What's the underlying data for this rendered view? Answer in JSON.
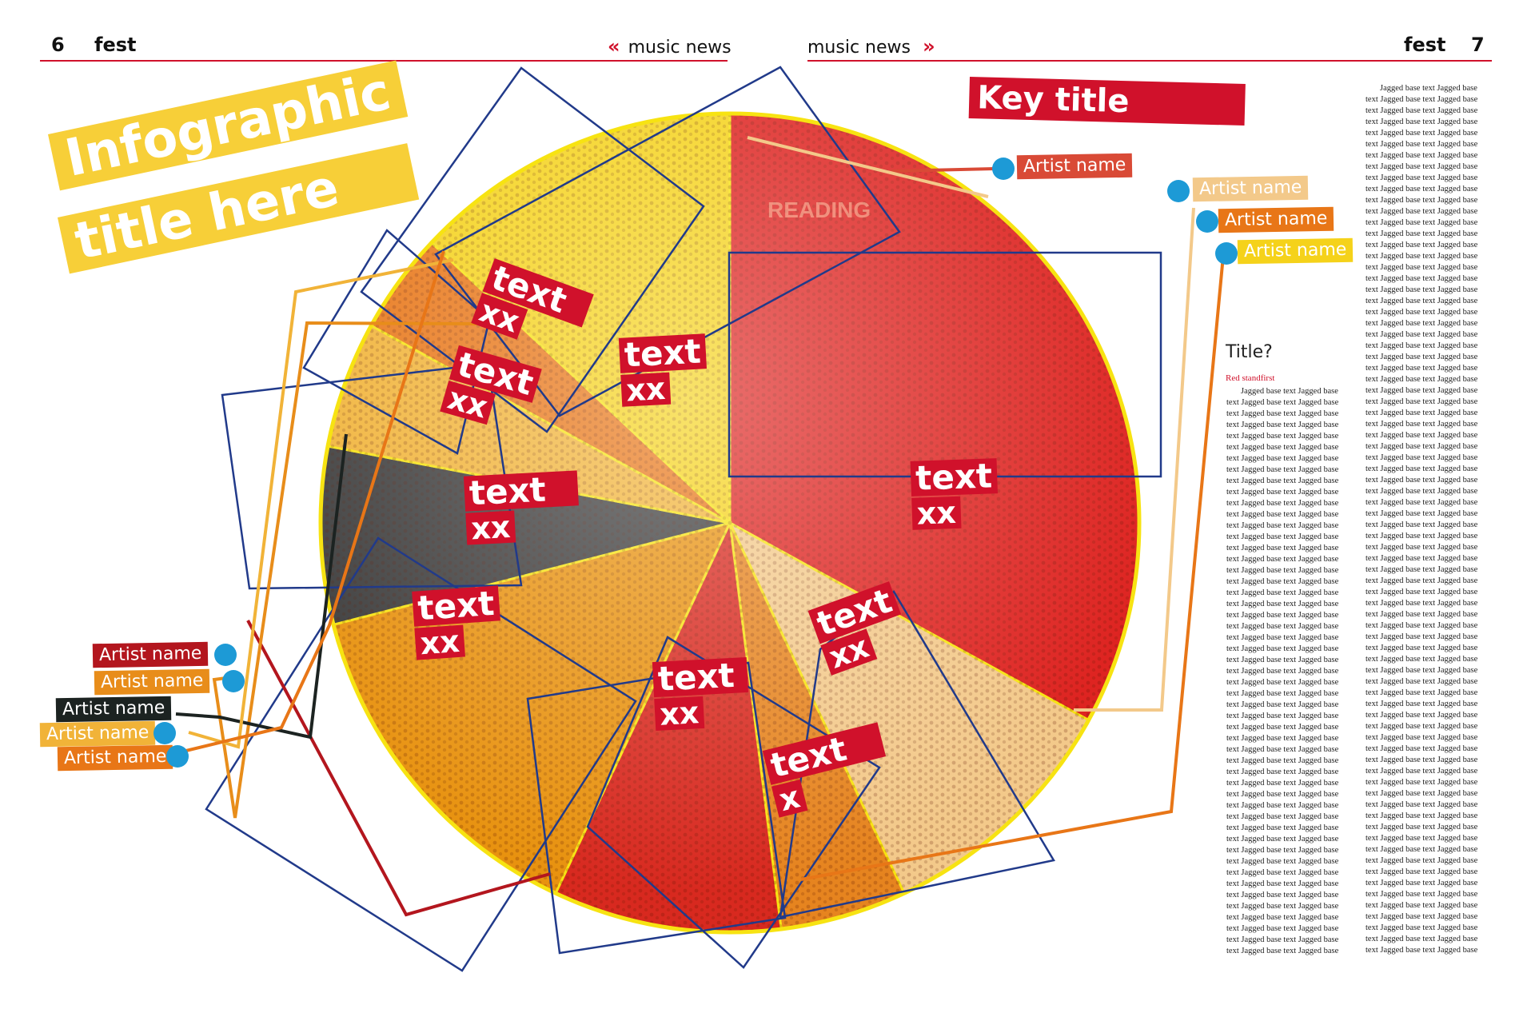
{
  "header": {
    "left_page_number": "6",
    "left_magazine": "fest",
    "left_section": "music news",
    "right_section": "music news",
    "right_magazine": "fest",
    "right_page_number": "7",
    "chevron_left": "«",
    "chevron_right": "»"
  },
  "infographic": {
    "title_line1": "Infographic",
    "title_line2": "title here",
    "key_title": "Key title",
    "photo_sign": "READING"
  },
  "chart_data": {
    "type": "pie",
    "title": "Infographic title here",
    "slices": [
      {
        "label_line1": "text",
        "label_line2": "xx",
        "value": 33.0,
        "color": "#de2421"
      },
      {
        "label_line1": "text",
        "label_line2": "xx",
        "value": 10.0,
        "color": "#f3c98a"
      },
      {
        "label_line1": "text",
        "label_line2": "x",
        "value": 5.0,
        "color": "#e6841f"
      },
      {
        "label_line1": "text",
        "label_line2": "xx",
        "value": 9.0,
        "color": "#d8291f"
      },
      {
        "label_line1": "text",
        "label_line2": "xx",
        "value": 14.0,
        "color": "#e8920f"
      },
      {
        "label_line1": "text",
        "label_line2": "xx",
        "value": 7.0,
        "color": "#3c3c3c"
      },
      {
        "label_line1": "text",
        "label_line2": "xx",
        "value": 5.0,
        "color": "#f1b338"
      },
      {
        "label_line1": "text",
        "label_line2": "xx",
        "value": 4.0,
        "color": "#e87617"
      },
      {
        "label_line1": "text",
        "label_line2": "xx",
        "value": 13.0,
        "color": "#f5d21a"
      }
    ]
  },
  "artist_tags_right": [
    {
      "text": "Artist name",
      "color": "#d94a36"
    },
    {
      "text": "Artist name",
      "color": "#f3c98a"
    },
    {
      "text": "Artist name",
      "color": "#e87617"
    },
    {
      "text": "Artist name",
      "color": "#f5d21a"
    }
  ],
  "artist_tags_left": [
    {
      "text": "Artist name",
      "color": "#b3161e"
    },
    {
      "text": "Artist name",
      "color": "#e88d1a"
    },
    {
      "text": "Artist name",
      "color": "#1c2321"
    },
    {
      "text": "Artist name",
      "color": "#f1b338"
    },
    {
      "text": "Artist name",
      "color": "#e87617"
    }
  ],
  "sidebar": {
    "title": "Title?",
    "standfirst": "Red standfirst",
    "column1": "Jagged base text Jagged base text Jagged base text Jagged base text Jagged base text Jagged base text Jagged base text Jagged base text Jagged base text Jagged base text Jagged base text Jagged base text Jagged base text Jagged base text Jagged base text Jagged base text Jagged base text Jagged base text Jagged base text Jagged base text Jagged base text Jagged base text Jagged base text Jagged base text Jagged base text Jagged base text Jagged base text Jagged base text Jagged base text Jagged base text Jagged base text Jagged base text Jagged base text Jagged base text Jagged base text Jagged base text Jagged base text Jagged base text Jagged base text Jagged base text Jagged base text Jagged base text Jagged base text Jagged base text Jagged base text Jagged base text Jagged base text Jagged base text Jagged base text Jagged base text Jagged base text Jagged base text Jagged base text Jagged base text Jagged base text Jagged base text Jagged base text Jagged base text Jagged base text Jagged base text Jagged base text Jagged base text Jagged base text Jagged base text Jagged base text Jagged base text Jagged base text Jagged base text Jagged base text Jagged base text Jagged base text Jagged base text Jagged base text Jagged base text Jagged base text Jagged base text Jagged base text Jagged base text Jagged base text Jagged base text Jagged base text Jagged base text Jagged base text Jagged base text Jagged base text Jagged base text Jagged base text Jagged base text Jagged base text Jagged base text Jagged base text Jagged base text Jagged base text Jagged base text Jagged base text Jagged base text Jagged base text Jagged base text Jagged base text Jagged base text Jagged base text Jagged base text Jagged base text Jagged base text Jagged base text Jagged base text Jagged base text Jagged base text",
    "column2": "Jagged base text Jagged base text Jagged base text Jagged base text Jagged base text Jagged base text Jagged base text Jagged base text Jagged base text Jagged base text Jagged base text Jagged base text Jagged base text Jagged base text Jagged base text Jagged base text Jagged base text Jagged base text Jagged base text Jagged base text Jagged base text Jagged base text Jagged base text Jagged base text Jagged base text Jagged base text Jagged base text Jagged base text Jagged base text Jagged base text Jagged base text Jagged base text Jagged base text Jagged base text Jagged base text Jagged base text Jagged base text Jagged base text Jagged base text Jagged base text Jagged base text Jagged base text Jagged base text Jagged base text Jagged base text Jagged base text Jagged base text Jagged base text Jagged base text Jagged base text Jagged base text Jagged base text Jagged base text Jagged base text Jagged base text Jagged base text Jagged base text Jagged base text Jagged base text Jagged base text Jagged base text Jagged base text Jagged base text Jagged base text Jagged base text Jagged base text Jagged base text Jagged base text Jagged base text Jagged base text Jagged base text Jagged base text Jagged base text Jagged base text Jagged base text Jagged base text Jagged base text Jagged base text Jagged base text Jagged base text Jagged base text Jagged base text Jagged base text Jagged base text Jagged base text Jagged base text Jagged base text Jagged base text Jagged base text Jagged base text Jagged base text Jagged base text Jagged base text Jagged base text Jagged base text Jagged base text Jagged base text Jagged base text Jagged base text Jagged base text Jagged base text Jagged base text Jagged base text Jagged base text Jagged base text Jagged base text Jagged base text Jagged base text Jagged base text Jagged base text Jagged base text Jagged base text Jagged base text Jagged base text Jagged base text Jagged base text Jagged base text Jagged base text Jagged base text Jagged base text Jagged base text Jagged base text Jagged base text Jagged base text Jagged base text Jagged base text Jagged base text Jagged base text Jagged base text Jagged base text Jagged base text Jagged base text Jagged base text Jagged base text Jagged base text Jagged base text Jagged base text Jagged base text Jagged base text Jagged base text Jagged base text Jagged base text Jagged base text Jagged base text Jagged base text Jagged base text Jagged base text Jagged base text Jagged base text Jagged base text Jagged base text Jagged base text Jagged base text Jagged base text Jagged base text Jagged base text Jagged base text Jagged base text Jagged base text Jagged base text Jagged base text Jagged base text Jagged base text Jagged base text Jagged base text Jagged base text Jagged base text Jagged base text Jagged base text Jagged base text Jagged base text Jagged base text Jagged base text Jagged base text Jagged base text Jagged base text Jagged base text Jagged base text Jagged base text Jagged base text Jagged base text Jagged base text Jagged base text Jagged base text."
  }
}
